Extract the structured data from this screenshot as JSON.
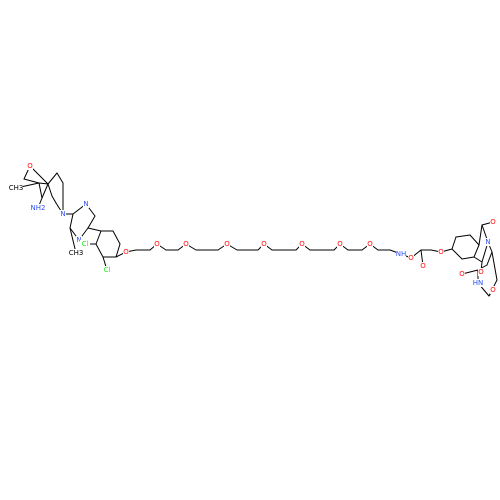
{
  "figure": {
    "kind": "chemical-structure",
    "colors": {
      "bond": "#000000",
      "O": "#ff0d0d",
      "N": "#3050f8",
      "Cl": "#1ff01f",
      "C": "#000000"
    }
  },
  "atom_labels": [
    {
      "id": "oxolane-O",
      "text": "O",
      "element": "O"
    },
    {
      "id": "methyl-label",
      "text": "CH3",
      "element": "C"
    },
    {
      "id": "amine-N",
      "text": "NH2",
      "element": "N"
    },
    {
      "id": "piperidine-N",
      "text": "N",
      "element": "N"
    },
    {
      "id": "pyrazine-N1",
      "text": "N",
      "element": "N"
    },
    {
      "id": "pyrazine-N2",
      "text": "N",
      "element": "N"
    },
    {
      "id": "pyrazine-methyl",
      "text": "CH3",
      "element": "C"
    },
    {
      "id": "chloro-1",
      "text": "Cl",
      "element": "Cl"
    },
    {
      "id": "chloro-2",
      "text": "Cl",
      "element": "Cl"
    },
    {
      "id": "aryl-ether-O",
      "text": "O",
      "element": "O"
    },
    {
      "id": "peg-O1",
      "text": "O",
      "element": "O"
    },
    {
      "id": "peg-O2",
      "text": "O",
      "element": "O"
    },
    {
      "id": "peg-O3",
      "text": "O",
      "element": "O"
    },
    {
      "id": "peg-O4",
      "text": "O",
      "element": "O"
    },
    {
      "id": "peg-O5",
      "text": "O",
      "element": "O"
    },
    {
      "id": "peg-O6",
      "text": "O",
      "element": "O"
    },
    {
      "id": "peg-O7",
      "text": "O",
      "element": "O"
    },
    {
      "id": "peg-O8",
      "text": "O",
      "element": "O"
    },
    {
      "id": "linker-NH",
      "text": "NH",
      "element": "N"
    },
    {
      "id": "ketone-O",
      "text": "O",
      "element": "O"
    },
    {
      "id": "phenol-ether-O",
      "text": "O",
      "element": "O"
    },
    {
      "id": "imide-O-top",
      "text": "O",
      "element": "O"
    },
    {
      "id": "imide-N",
      "text": "N",
      "element": "N"
    },
    {
      "id": "imide-O-bottom",
      "text": "O",
      "element": "O"
    },
    {
      "id": "glutarimide-O1",
      "text": "O",
      "element": "O"
    },
    {
      "id": "glutarimide-NH",
      "text": "HN",
      "element": "N"
    },
    {
      "id": "glutarimide-O2",
      "text": "O",
      "element": "O"
    }
  ]
}
